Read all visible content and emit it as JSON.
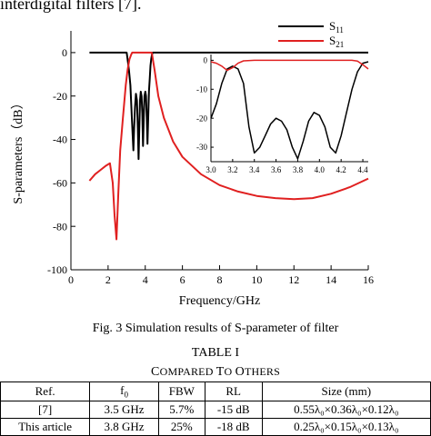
{
  "page_top_text": "interdigital filters [7].",
  "figure": {
    "caption": "Fig. 3 Simulation results of S-parameter of filter"
  },
  "chart_data": [
    {
      "type": "line",
      "title": "",
      "xlabel": "Frequency/GHz",
      "ylabel": "S-parameters（dB）",
      "xlim": [
        0,
        16
      ],
      "ylim": [
        -100,
        10
      ],
      "xticks": [
        "0",
        "2",
        "4",
        "6",
        "8",
        "10",
        "12",
        "14",
        "16"
      ],
      "yticks": [
        "0",
        "-20",
        "-40",
        "-60",
        "-80",
        "-100"
      ],
      "grid": false,
      "legend": "top-right",
      "series": [
        {
          "name": "S11",
          "color": "#000000",
          "x": [
            1.0,
            3.0,
            3.05,
            3.12,
            3.2,
            3.28,
            3.36,
            3.4,
            3.45,
            3.5,
            3.55,
            3.6,
            3.64,
            3.68,
            3.72,
            3.76,
            3.8,
            3.84,
            3.88,
            3.92,
            3.96,
            4.0,
            4.04,
            4.08,
            4.12,
            4.16,
            4.2,
            4.24,
            4.28,
            4.32,
            4.36,
            4.4,
            4.45,
            4.55,
            16.0
          ],
          "y": [
            0,
            0,
            -3,
            -8,
            -15,
            -30,
            -45,
            -35,
            -25,
            -19,
            -22,
            -35,
            -49,
            -35,
            -22,
            -18,
            -20,
            -28,
            -43,
            -30,
            -20,
            -18,
            -20,
            -30,
            -42,
            -30,
            -18,
            -12,
            -6,
            -3,
            -1,
            0,
            0,
            0,
            0
          ]
        },
        {
          "name": "S21",
          "color": "#e02020",
          "x": [
            1.0,
            1.3,
            1.6,
            1.9,
            2.1,
            2.25,
            2.35,
            2.45,
            2.55,
            2.65,
            2.8,
            2.95,
            3.05,
            3.15,
            3.25,
            3.3,
            4.35,
            4.5,
            4.7,
            5.0,
            5.5,
            6.0,
            7.0,
            8.0,
            9.0,
            10.0,
            11.0,
            12.0,
            13.0,
            14.0,
            15.0,
            16.0
          ],
          "y": [
            -59,
            -56,
            -54,
            -52,
            -51,
            -60,
            -75,
            -86,
            -65,
            -45,
            -30,
            -15,
            -8,
            -3,
            -0.8,
            0,
            0,
            -8,
            -20,
            -30,
            -41,
            -48,
            -56,
            -61,
            -64,
            -66,
            -67,
            -67.5,
            -67,
            -65,
            -62,
            -58
          ]
        }
      ]
    },
    {
      "type": "line",
      "title": "",
      "xlabel": "",
      "ylabel": "",
      "xlim": [
        3.0,
        4.45
      ],
      "ylim": [
        -35,
        2
      ],
      "xticks": [
        "3.0",
        "3.2",
        "3.4",
        "3.6",
        "3.8",
        "4.0",
        "4.2",
        "4.4"
      ],
      "yticks": [
        "0",
        "-10",
        "-20",
        "-30"
      ],
      "grid": false,
      "legend": "none",
      "series": [
        {
          "name": "S11",
          "color": "#000000",
          "x": [
            3.0,
            3.05,
            3.1,
            3.15,
            3.2,
            3.25,
            3.3,
            3.35,
            3.4,
            3.45,
            3.5,
            3.55,
            3.6,
            3.65,
            3.7,
            3.75,
            3.8,
            3.85,
            3.9,
            3.95,
            4.0,
            4.05,
            4.1,
            4.15,
            4.2,
            4.25,
            4.3,
            4.35,
            4.4,
            4.45
          ],
          "y": [
            -20,
            -15,
            -8,
            -3,
            -2,
            -3,
            -8,
            -23,
            -32,
            -30,
            -26,
            -22,
            -20,
            -21,
            -24,
            -30,
            -34,
            -28,
            -21,
            -18,
            -19,
            -23,
            -30,
            -32,
            -26,
            -18,
            -10,
            -4,
            -1,
            -0.5
          ]
        },
        {
          "name": "S21",
          "color": "#e02020",
          "x": [
            3.0,
            3.05,
            3.1,
            3.15,
            3.2,
            3.25,
            3.3,
            3.4,
            4.0,
            4.3,
            4.35,
            4.4,
            4.45
          ],
          "y": [
            -0.5,
            -1,
            -2,
            -3.5,
            -2.5,
            -1,
            -0.2,
            0,
            0,
            0,
            -0.3,
            -1.5,
            -3
          ]
        }
      ]
    }
  ],
  "table": {
    "title": "TABLE I",
    "subtitle": "Compared To Others",
    "headers": [
      "Ref.",
      "f",
      "FBW",
      "RL",
      "Size (mm)"
    ],
    "header_f_sub": "0",
    "rows": [
      {
        "ref": "[7]",
        "f0": "3.5 GHz",
        "fbw": "5.7%",
        "rl": "-15 dB",
        "size": "0.55λ₀×0.36λ₀×0.12λ₀"
      },
      {
        "ref": "This article",
        "f0": "3.8 GHz",
        "fbw": "25%",
        "rl": "-18 dB",
        "size": "0.25λ₀×0.15λ₀×0.13λ₀"
      }
    ]
  }
}
